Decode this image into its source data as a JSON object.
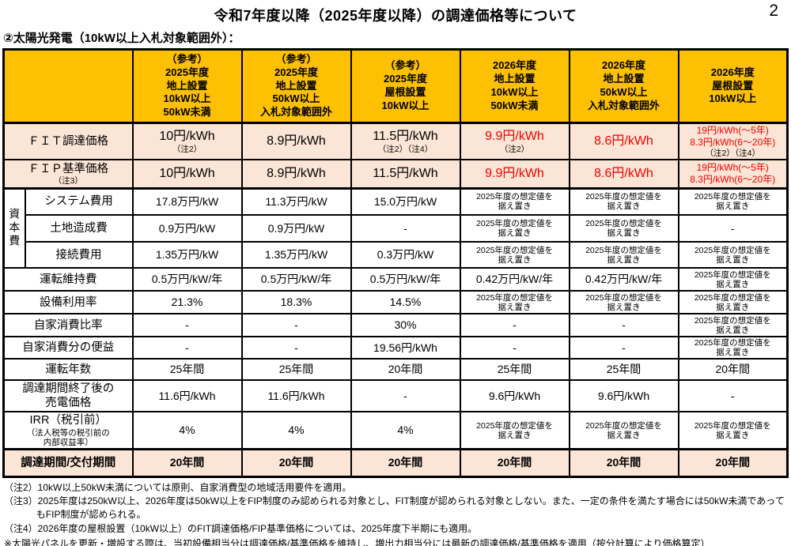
{
  "page": {
    "title": "令和7年度以降（2025年度以降）の調達価格等について",
    "page_number": "2",
    "subtitle": "②太陽光発電（10kW以上入札対象範囲外）："
  },
  "colors": {
    "header_bg": "#fdc002",
    "highlight_row_bg": "#fbe5d6",
    "accent_red": "#f20000",
    "border": "#000000"
  },
  "table": {
    "group_label": "資本費",
    "columns": [
      {
        "lines": [
          "（参考）",
          "2025年度",
          "地上設置",
          "10kW以上",
          "50kW未満"
        ]
      },
      {
        "lines": [
          "（参考）",
          "2025年度",
          "地上設置",
          "50kW以上",
          "入札対象範囲外"
        ]
      },
      {
        "lines": [
          "（参考）",
          "2025年度",
          "屋根設置",
          "10kW以上"
        ]
      },
      {
        "lines": [
          "2026年度",
          "地上設置",
          "10kW以上",
          "50kW未満"
        ]
      },
      {
        "lines": [
          "2026年度",
          "地上設置",
          "50kW以上",
          "入札対象範囲外"
        ]
      },
      {
        "lines": [
          "2026年度",
          "屋根設置",
          "10kW以上"
        ]
      }
    ],
    "rows": [
      {
        "name": "fit-price",
        "tint": true,
        "bold": false,
        "group": null,
        "label": [
          {
            "t": "ＦＩＴ調達価格",
            "cls": "lab"
          }
        ],
        "cells": [
          [
            {
              "t": "10円/kWh",
              "cls": "b"
            },
            {
              "t": "（注2）",
              "cls": "s"
            }
          ],
          [
            {
              "t": "8.9円/kWh",
              "cls": "b"
            }
          ],
          [
            {
              "t": "11.5円/kWh",
              "cls": "b"
            },
            {
              "t": "（注2）（注4）",
              "cls": "s"
            }
          ],
          [
            {
              "t": "9.9円/kWh",
              "cls": "r"
            },
            {
              "t": "（注2）",
              "cls": "s"
            }
          ],
          [
            {
              "t": "8.6円/kWh",
              "cls": "r"
            }
          ],
          [
            {
              "t": "19円/kWh(～5年)",
              "cls": "rs"
            },
            {
              "t": "8.3円/kWh(6～20年)",
              "cls": "rs"
            },
            {
              "t": "（注2）（注4）",
              "cls": "s"
            }
          ]
        ]
      },
      {
        "name": "fip-price",
        "tint": true,
        "bold": false,
        "group": null,
        "label": [
          {
            "t": "ＦＩＰ基準価格",
            "cls": "lab"
          },
          {
            "t": "（注3）",
            "cls": "s"
          }
        ],
        "cells": [
          [
            {
              "t": "10円/kWh",
              "cls": "b"
            }
          ],
          [
            {
              "t": "8.9円/kWh",
              "cls": "b"
            }
          ],
          [
            {
              "t": "11.5円/kWh",
              "cls": "b"
            }
          ],
          [
            {
              "t": "9.9円/kWh",
              "cls": "r"
            }
          ],
          [
            {
              "t": "8.6円/kWh",
              "cls": "r"
            }
          ],
          [
            {
              "t": "19円/kWh(～5年)",
              "cls": "rs"
            },
            {
              "t": "8.3円/kWh(6～20年)",
              "cls": "rs"
            }
          ]
        ]
      },
      {
        "name": "system-cost",
        "tint": false,
        "bold": false,
        "group": "start",
        "label": [
          {
            "t": "システム費用",
            "cls": "lab"
          }
        ],
        "cells": [
          [
            {
              "t": "17.8万円/kW",
              "cls": "v"
            }
          ],
          [
            {
              "t": "11.3万円/kW",
              "cls": "v"
            }
          ],
          [
            {
              "t": "15.0万円/kW",
              "cls": "v"
            }
          ],
          [
            {
              "t": "2025年度の想定値を",
              "cls": "s"
            },
            {
              "t": "据え置き",
              "cls": "s"
            }
          ],
          [
            {
              "t": "2025年度の想定値を",
              "cls": "s"
            },
            {
              "t": "据え置き",
              "cls": "s"
            }
          ],
          [
            {
              "t": "2025年度の想定値を",
              "cls": "s"
            },
            {
              "t": "据え置き",
              "cls": "s"
            }
          ]
        ]
      },
      {
        "name": "land-cost",
        "tint": false,
        "bold": false,
        "group": "mid",
        "label": [
          {
            "t": "土地造成費",
            "cls": "lab"
          }
        ],
        "cells": [
          [
            {
              "t": "0.9万円/kW",
              "cls": "v"
            }
          ],
          [
            {
              "t": "0.9万円/kW",
              "cls": "v"
            }
          ],
          [
            {
              "t": "-",
              "cls": "v"
            }
          ],
          [
            {
              "t": "2025年度の想定値を",
              "cls": "s"
            },
            {
              "t": "据え置き",
              "cls": "s"
            }
          ],
          [
            {
              "t": "2025年度の想定値を",
              "cls": "s"
            },
            {
              "t": "据え置き",
              "cls": "s"
            }
          ],
          [
            {
              "t": "-",
              "cls": "v"
            }
          ]
        ]
      },
      {
        "name": "connection-cost",
        "tint": false,
        "bold": false,
        "group": "mid",
        "label": [
          {
            "t": "接続費用",
            "cls": "lab"
          }
        ],
        "cells": [
          [
            {
              "t": "1.35万円/kW",
              "cls": "v"
            }
          ],
          [
            {
              "t": "1.35万円/kW",
              "cls": "v"
            }
          ],
          [
            {
              "t": "0.3万円/kW",
              "cls": "v"
            }
          ],
          [
            {
              "t": "2025年度の想定値を",
              "cls": "s"
            },
            {
              "t": "据え置き",
              "cls": "s"
            }
          ],
          [
            {
              "t": "2025年度の想定値を",
              "cls": "s"
            },
            {
              "t": "据え置き",
              "cls": "s"
            }
          ],
          [
            {
              "t": "2025年度の想定値を",
              "cls": "s"
            },
            {
              "t": "据え置き",
              "cls": "s"
            }
          ]
        ]
      },
      {
        "name": "om-cost",
        "tint": false,
        "bold": false,
        "group": null,
        "label": [
          {
            "t": "運転維持費",
            "cls": "lab"
          }
        ],
        "cells": [
          [
            {
              "t": "0.5万円/kW/年",
              "cls": "v"
            }
          ],
          [
            {
              "t": "0.5万円/kW/年",
              "cls": "v"
            }
          ],
          [
            {
              "t": "0.5万円/kW/年",
              "cls": "v"
            }
          ],
          [
            {
              "t": "0.42万円/kW/年",
              "cls": "v"
            }
          ],
          [
            {
              "t": "0.42万円/kW/年",
              "cls": "v"
            }
          ],
          [
            {
              "t": "2025年度の想定値を",
              "cls": "s"
            },
            {
              "t": "据え置き",
              "cls": "s"
            }
          ]
        ]
      },
      {
        "name": "capacity-factor",
        "tint": false,
        "bold": false,
        "group": null,
        "label": [
          {
            "t": "設備利用率",
            "cls": "lab"
          }
        ],
        "cells": [
          [
            {
              "t": "21.3%",
              "cls": "v"
            }
          ],
          [
            {
              "t": "18.3%",
              "cls": "v"
            }
          ],
          [
            {
              "t": "14.5%",
              "cls": "v"
            }
          ],
          [
            {
              "t": "2025年度の想定値を",
              "cls": "s"
            },
            {
              "t": "据え置き",
              "cls": "s"
            }
          ],
          [
            {
              "t": "2025年度の想定値を",
              "cls": "s"
            },
            {
              "t": "据え置き",
              "cls": "s"
            }
          ],
          [
            {
              "t": "2025年度の想定値を",
              "cls": "s"
            },
            {
              "t": "据え置き",
              "cls": "s"
            }
          ]
        ]
      },
      {
        "name": "self-consumption-ratio",
        "tint": false,
        "bold": false,
        "group": null,
        "label": [
          {
            "t": "自家消費比率",
            "cls": "lab"
          }
        ],
        "cells": [
          [
            {
              "t": "-",
              "cls": "v"
            }
          ],
          [
            {
              "t": "-",
              "cls": "v"
            }
          ],
          [
            {
              "t": "30%",
              "cls": "v"
            }
          ],
          [
            {
              "t": "-",
              "cls": "v"
            }
          ],
          [
            {
              "t": "-",
              "cls": "v"
            }
          ],
          [
            {
              "t": "2025年度の想定値を",
              "cls": "s"
            },
            {
              "t": "据え置き",
              "cls": "s"
            }
          ]
        ]
      },
      {
        "name": "self-consumption-benefit",
        "tint": false,
        "bold": false,
        "group": null,
        "label": [
          {
            "t": "自家消費分の便益",
            "cls": "lab"
          }
        ],
        "cells": [
          [
            {
              "t": "-",
              "cls": "v"
            }
          ],
          [
            {
              "t": "-",
              "cls": "v"
            }
          ],
          [
            {
              "t": "19.56円/kWh",
              "cls": "v"
            }
          ],
          [
            {
              "t": "-",
              "cls": "v"
            }
          ],
          [
            {
              "t": "-",
              "cls": "v"
            }
          ],
          [
            {
              "t": "2025年度の想定値を",
              "cls": "s"
            },
            {
              "t": "据え置き",
              "cls": "s"
            }
          ]
        ]
      },
      {
        "name": "operation-years",
        "tint": false,
        "bold": false,
        "group": null,
        "label": [
          {
            "t": "運転年数",
            "cls": "lab"
          }
        ],
        "cells": [
          [
            {
              "t": "25年間",
              "cls": "v"
            }
          ],
          [
            {
              "t": "25年間",
              "cls": "v"
            }
          ],
          [
            {
              "t": "20年間",
              "cls": "v"
            }
          ],
          [
            {
              "t": "25年間",
              "cls": "v"
            }
          ],
          [
            {
              "t": "25年間",
              "cls": "v"
            }
          ],
          [
            {
              "t": "20年間",
              "cls": "v"
            }
          ]
        ]
      },
      {
        "name": "post-period-price",
        "tint": false,
        "bold": false,
        "group": null,
        "label": [
          {
            "t": "調達期間終了後の",
            "cls": "lab"
          },
          {
            "t": "売電価格",
            "cls": "lab"
          }
        ],
        "cells": [
          [
            {
              "t": "11.6円/kWh",
              "cls": "v"
            }
          ],
          [
            {
              "t": "11.6円/kWh",
              "cls": "v"
            }
          ],
          [
            {
              "t": "-",
              "cls": "v"
            }
          ],
          [
            {
              "t": "9.6円/kWh",
              "cls": "v"
            }
          ],
          [
            {
              "t": "9.6円/kWh",
              "cls": "v"
            }
          ],
          [
            {
              "t": "-",
              "cls": "v"
            }
          ]
        ]
      },
      {
        "name": "irr",
        "tint": false,
        "bold": false,
        "group": null,
        "label": [
          {
            "t": "IRR（税引前）",
            "cls": "lab"
          },
          {
            "t": "（法人税等の税引前の",
            "cls": "s"
          },
          {
            "t": "内部収益率）",
            "cls": "s"
          }
        ],
        "cells": [
          [
            {
              "t": "4%",
              "cls": "v"
            }
          ],
          [
            {
              "t": "4%",
              "cls": "v"
            }
          ],
          [
            {
              "t": "4%",
              "cls": "v"
            }
          ],
          [
            {
              "t": "2025年度の想定値を",
              "cls": "s"
            },
            {
              "t": "据え置き",
              "cls": "s"
            }
          ],
          [
            {
              "t": "2025年度の想定値を",
              "cls": "s"
            },
            {
              "t": "据え置き",
              "cls": "s"
            }
          ],
          [
            {
              "t": "2025年度の想定値を",
              "cls": "s"
            },
            {
              "t": "据え置き",
              "cls": "s"
            }
          ]
        ]
      },
      {
        "name": "procurement-period",
        "tint": true,
        "bold": true,
        "group": null,
        "label": [
          {
            "t": "調達期間/交付期間",
            "cls": "lab"
          }
        ],
        "cells": [
          [
            {
              "t": "20年間",
              "cls": "v"
            }
          ],
          [
            {
              "t": "20年間",
              "cls": "v"
            }
          ],
          [
            {
              "t": "20年間",
              "cls": "v"
            }
          ],
          [
            {
              "t": "20年間",
              "cls": "v"
            }
          ],
          [
            {
              "t": "20年間",
              "cls": "v"
            }
          ],
          [
            {
              "t": "20年間",
              "cls": "v"
            }
          ]
        ]
      }
    ]
  },
  "notes": [
    "（注2）10kW以上50kW未満については原則、自家消費型の地域活用要件を適用。",
    "（注3）2025年度は250kW以上、2026年度は50kW以上をFIP制度のみ認められる対象とし、FIT制度が認められる対象としない。また、一定の条件を満たす場合には50kW未満であってもFIP制度が認められる。",
    "（注4）2026年度の屋根設置（10kW以上）のFIT調達価格/FIP基準価格については、2025年度下半期にも適用。",
    "※太陽光パネルを更新・増設する際は、当初設備相当分は調達価格/基準価格を維持し、増出力相当分には最新の調達価格/基準価格を適用（按分計算により価格算定）"
  ]
}
